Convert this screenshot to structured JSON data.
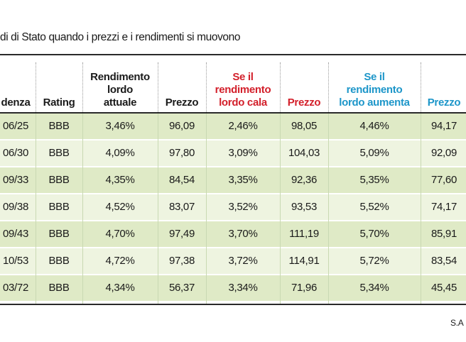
{
  "title": "di di Stato quando i prezzi e i rendimenti si muovono",
  "headers": {
    "scadenza": "denza",
    "rating": "Rating",
    "rendimento_attuale": [
      "Rendimento",
      "lordo",
      "attuale"
    ],
    "prezzo": "Prezzo",
    "rendimento_cala": [
      "Se il",
      "rendimento",
      "lordo cala"
    ],
    "prezzo_cala": "Prezzo",
    "rendimento_aumenta": [
      "Se il",
      "rendimento",
      "lordo aumenta"
    ],
    "prezzo_aumenta": "Prezzo"
  },
  "rows": [
    {
      "scadenza": "06/25",
      "rating": "BBB",
      "rend": "3,46%",
      "prezzo": "96,09",
      "rend_cala": "2,46%",
      "prezzo_cala": "98,05",
      "rend_aum": "4,46%",
      "prezzo_aum": "94,17"
    },
    {
      "scadenza": "06/30",
      "rating": "BBB",
      "rend": "4,09%",
      "prezzo": "97,80",
      "rend_cala": "3,09%",
      "prezzo_cala": "104,03",
      "rend_aum": "5,09%",
      "prezzo_aum": "92,09"
    },
    {
      "scadenza": "09/33",
      "rating": "BBB",
      "rend": "4,35%",
      "prezzo": "84,54",
      "rend_cala": "3,35%",
      "prezzo_cala": "92,36",
      "rend_aum": "5,35%",
      "prezzo_aum": "77,60"
    },
    {
      "scadenza": "09/38",
      "rating": "BBB",
      "rend": "4,52%",
      "prezzo": "83,07",
      "rend_cala": "3,52%",
      "prezzo_cala": "93,53",
      "rend_aum": "5,52%",
      "prezzo_aum": "74,17"
    },
    {
      "scadenza": "09/43",
      "rating": "BBB",
      "rend": "4,70%",
      "prezzo": "97,49",
      "rend_cala": "3,70%",
      "prezzo_cala": "111,19",
      "rend_aum": "5,70%",
      "prezzo_aum": "85,91"
    },
    {
      "scadenza": "10/53",
      "rating": "BBB",
      "rend": "4,72%",
      "prezzo": "97,38",
      "rend_cala": "3,72%",
      "prezzo_cala": "114,91",
      "rend_aum": "5,72%",
      "prezzo_aum": "83,54"
    },
    {
      "scadenza": "03/72",
      "rating": "BBB",
      "rend": "4,34%",
      "prezzo": "56,37",
      "rend_cala": "3,34%",
      "prezzo_cala": "71,96",
      "rend_aum": "5,34%",
      "prezzo_aum": "45,45"
    }
  ],
  "source": "S.A",
  "colors": {
    "row_dark": "#dfeac6",
    "row_light": "#eef4e0",
    "header_red": "#d3202b",
    "header_blue": "#1d96c9"
  }
}
